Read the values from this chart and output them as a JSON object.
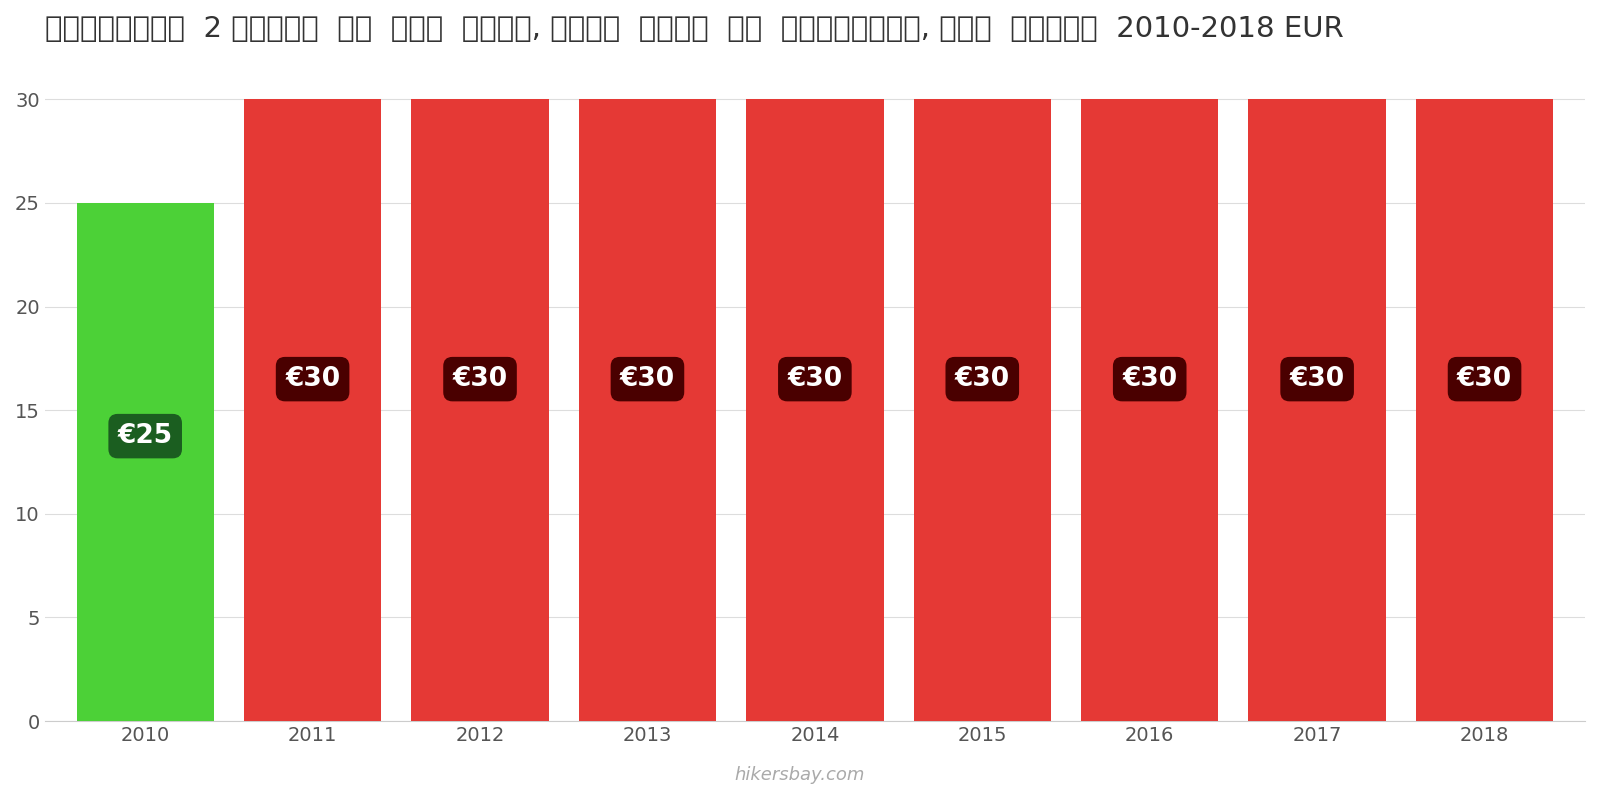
{
  "title": "पुर्तगाल  2 लोगों  के  लिए  भोजन, मध्य  दूरी  के  रेस्तरां, तीन  कोर्स  2010-2018 EUR",
  "years": [
    2010,
    2011,
    2012,
    2013,
    2014,
    2015,
    2016,
    2017,
    2018
  ],
  "values": [
    25,
    30,
    30,
    30,
    30,
    30,
    30,
    30,
    30
  ],
  "bar_colors": [
    "#4CD137",
    "#E53935",
    "#E53935",
    "#E53935",
    "#E53935",
    "#E53935",
    "#E53935",
    "#E53935",
    "#E53935"
  ],
  "label_color_bg": [
    "#1B5E20",
    "#4A0000",
    "#4A0000",
    "#4A0000",
    "#4A0000",
    "#4A0000",
    "#4A0000",
    "#4A0000",
    "#4A0000"
  ],
  "labels": [
    "€25",
    "€30",
    "€30",
    "€30",
    "€30",
    "€30",
    "€30",
    "€30",
    "€30"
  ],
  "ylim": [
    0,
    32
  ],
  "yticks": [
    0,
    5,
    10,
    15,
    20,
    25,
    30
  ],
  "watermark": "hikersbay.com",
  "background_color": "#ffffff",
  "title_fontsize": 21,
  "tick_fontsize": 14,
  "label_fontsize": 19,
  "bar_width": 0.82
}
